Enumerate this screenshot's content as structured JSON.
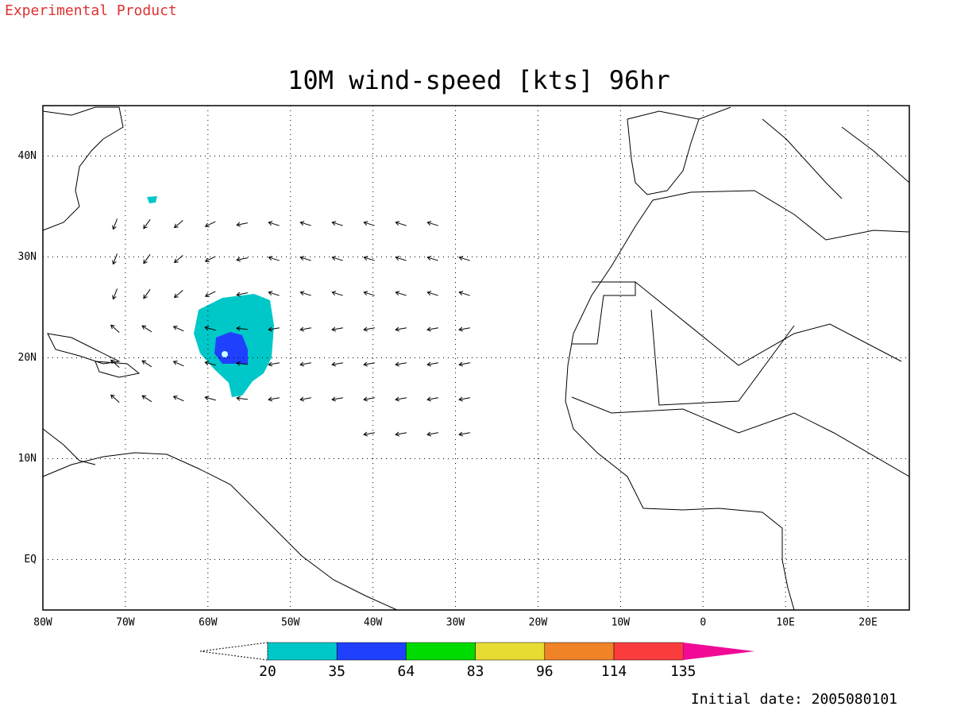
{
  "header": {
    "product": "Experimental Product"
  },
  "map": {
    "title": "10M wind-speed [kts] 96hr",
    "lon_range": [
      -80,
      25
    ],
    "lat_range": [
      -5,
      45
    ],
    "lon_ticks": [
      {
        "value": -80,
        "label": "80W"
      },
      {
        "value": -70,
        "label": "70W"
      },
      {
        "value": -60,
        "label": "60W"
      },
      {
        "value": -50,
        "label": "50W"
      },
      {
        "value": -40,
        "label": "40W"
      },
      {
        "value": -30,
        "label": "30W"
      },
      {
        "value": -20,
        "label": "20W"
      },
      {
        "value": -10,
        "label": "10W"
      },
      {
        "value": 0,
        "label": "0"
      },
      {
        "value": 10,
        "label": "10E"
      },
      {
        "value": 20,
        "label": "20E"
      }
    ],
    "lat_ticks": [
      {
        "value": 40,
        "label": "40N"
      },
      {
        "value": 30,
        "label": "30N"
      },
      {
        "value": 20,
        "label": "20N"
      },
      {
        "value": 10,
        "label": "10N"
      },
      {
        "value": 0,
        "label": "EQ"
      }
    ],
    "grid": true
  },
  "colorbar": {
    "levels": [
      20,
      35,
      64,
      83,
      96,
      114,
      135
    ],
    "colors": [
      "#00c8c8",
      "#2040ff",
      "#00dc00",
      "#e6dc32",
      "#f08228",
      "#fa3c3c",
      "#f00a96"
    ]
  },
  "footer": {
    "initial_date": "Initial date: 2005080101"
  }
}
